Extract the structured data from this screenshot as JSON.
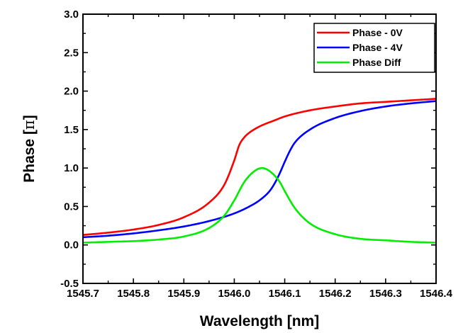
{
  "chart_data": {
    "type": "line",
    "title": "",
    "xlabel": "Wavelength [nm]",
    "ylabel_main": "Phase [",
    "ylabel_symbol": "π",
    "ylabel_end": "]",
    "xlim": [
      1545.7,
      1546.4
    ],
    "ylim": [
      -0.5,
      3.0
    ],
    "x_ticks": [
      1545.7,
      1545.8,
      1545.9,
      1546.0,
      1546.1,
      1546.2,
      1546.3,
      1546.4
    ],
    "x_tick_labels": [
      "1545.7",
      "1545.8",
      "1545.9",
      "1546.0",
      "1546.1",
      "1546.2",
      "1546.3",
      "1546.4"
    ],
    "y_ticks": [
      -0.5,
      0.0,
      0.5,
      1.0,
      1.5,
      2.0,
      2.5,
      3.0
    ],
    "y_tick_labels": [
      "-0.5",
      "0.0",
      "0.5",
      "1.0",
      "1.5",
      "2.0",
      "2.5",
      "3.0"
    ],
    "grid": false,
    "legend_position": "top-right",
    "series": [
      {
        "name": "Phase - 0V",
        "color": "#ff0000",
        "x": [
          1545.7,
          1545.75,
          1545.8,
          1545.85,
          1545.9,
          1545.95,
          1545.98,
          1546.0,
          1546.01,
          1546.02,
          1546.03,
          1546.05,
          1546.08,
          1546.1,
          1546.15,
          1546.2,
          1546.25,
          1546.3,
          1546.35,
          1546.4
        ],
        "y": [
          0.13,
          0.16,
          0.2,
          0.26,
          0.36,
          0.55,
          0.78,
          1.1,
          1.3,
          1.4,
          1.46,
          1.54,
          1.62,
          1.67,
          1.75,
          1.8,
          1.84,
          1.86,
          1.88,
          1.9
        ]
      },
      {
        "name": "Phase - 4V",
        "color": "#0000ff",
        "x": [
          1545.7,
          1545.75,
          1545.8,
          1545.85,
          1545.9,
          1545.95,
          1546.0,
          1546.03,
          1546.05,
          1546.07,
          1546.08,
          1546.09,
          1546.1,
          1546.11,
          1546.12,
          1546.15,
          1546.2,
          1546.25,
          1546.3,
          1546.35,
          1546.4
        ],
        "y": [
          0.1,
          0.12,
          0.15,
          0.19,
          0.24,
          0.31,
          0.41,
          0.5,
          0.58,
          0.7,
          0.8,
          0.93,
          1.08,
          1.22,
          1.33,
          1.5,
          1.65,
          1.74,
          1.8,
          1.84,
          1.87
        ]
      },
      {
        "name": "Phase Diff",
        "color": "#00ee00",
        "x": [
          1545.7,
          1545.75,
          1545.8,
          1545.85,
          1545.9,
          1545.95,
          1545.98,
          1546.0,
          1546.02,
          1546.04,
          1546.055,
          1546.07,
          1546.09,
          1546.1,
          1546.12,
          1546.15,
          1546.2,
          1546.25,
          1546.3,
          1546.35,
          1546.4
        ],
        "y": [
          0.03,
          0.04,
          0.05,
          0.07,
          0.11,
          0.22,
          0.38,
          0.58,
          0.82,
          0.96,
          1.0,
          0.96,
          0.82,
          0.7,
          0.48,
          0.28,
          0.14,
          0.08,
          0.06,
          0.04,
          0.03
        ]
      }
    ]
  }
}
